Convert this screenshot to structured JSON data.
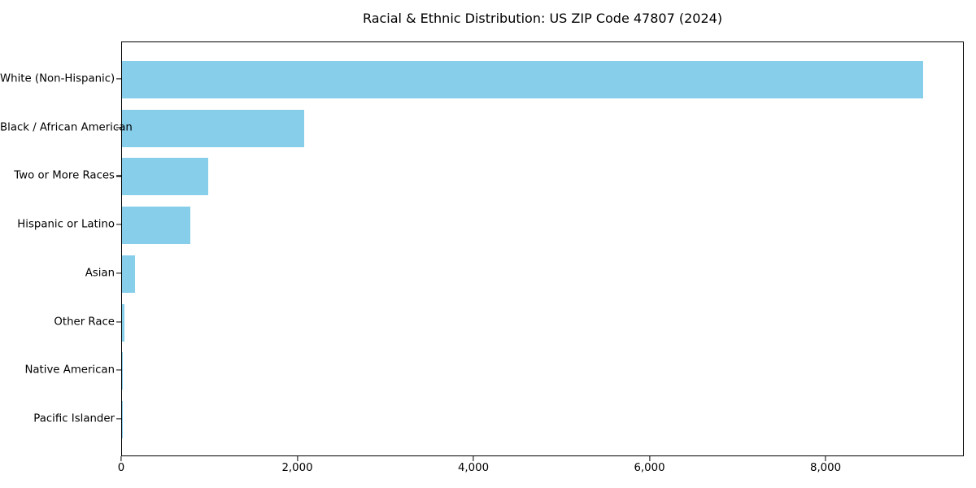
{
  "title": "Racial & Ethnic Distribution: US ZIP Code 47807 (2024)",
  "chart_data": {
    "type": "bar",
    "orientation": "horizontal",
    "title": "Racial & Ethnic Distribution: US ZIP Code 47807 (2024)",
    "categories": [
      "White (Non-Hispanic)",
      "Black / African American",
      "Two or More Races",
      "Hispanic or Latino",
      "Asian",
      "Other Race",
      "Native American",
      "Pacific Islander"
    ],
    "values": [
      9115,
      2070,
      980,
      775,
      150,
      30,
      5,
      2
    ],
    "bar_color": "#87ceeb",
    "xlabel": "",
    "ylabel": "",
    "xlim": [
      0,
      9570
    ],
    "xticks": [
      0,
      2000,
      4000,
      6000,
      8000
    ],
    "xtick_labels": [
      "0",
      "2,000",
      "4,000",
      "6,000",
      "8,000"
    ],
    "grid": false,
    "legend": "none",
    "background_color": "#ffffff",
    "frame_color": "#000000"
  }
}
